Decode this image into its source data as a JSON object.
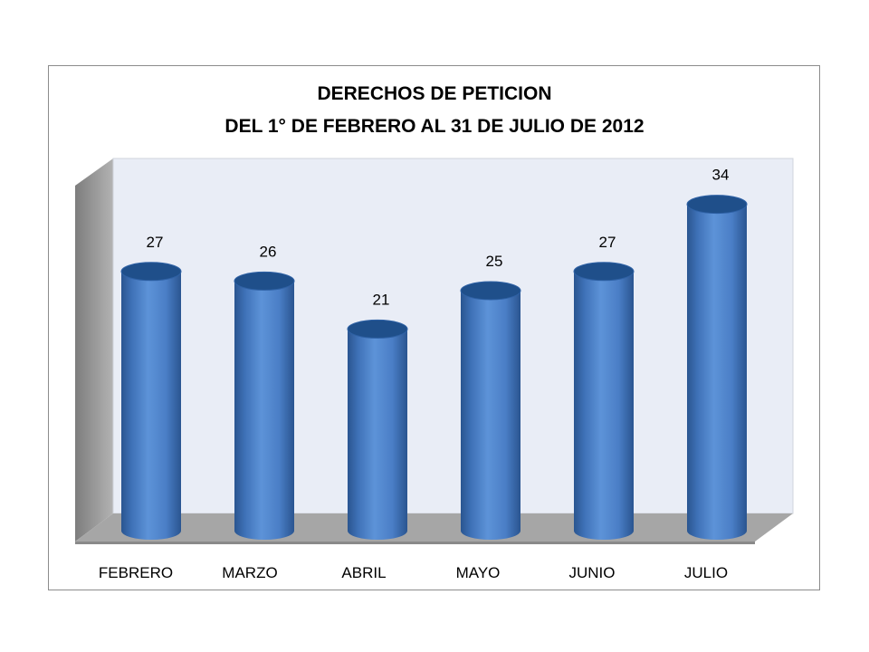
{
  "chart_data": {
    "type": "bar",
    "title": "DERECHOS DE PETICION",
    "subtitle": "DEL 1° DE FEBRERO AL 31 DE JULIO DE 2012",
    "categories": [
      "FEBRERO",
      "MARZO",
      "ABRIL",
      "MAYO",
      "JUNIO",
      "JULIO"
    ],
    "values": [
      27,
      26,
      21,
      25,
      27,
      34
    ],
    "ylim": [
      0,
      40
    ],
    "grid": false,
    "legend": "none",
    "style": "3d-cylinder"
  },
  "colors": {
    "bar_dark": "#2a5590",
    "bar_mid": "#4a7ec6",
    "bar_light": "#5d93d8",
    "bar_top": "#1f4f8a",
    "back_wall": "#e9edf6",
    "side_wall": "#9a9a9a",
    "floor": "#a6a6a6"
  }
}
